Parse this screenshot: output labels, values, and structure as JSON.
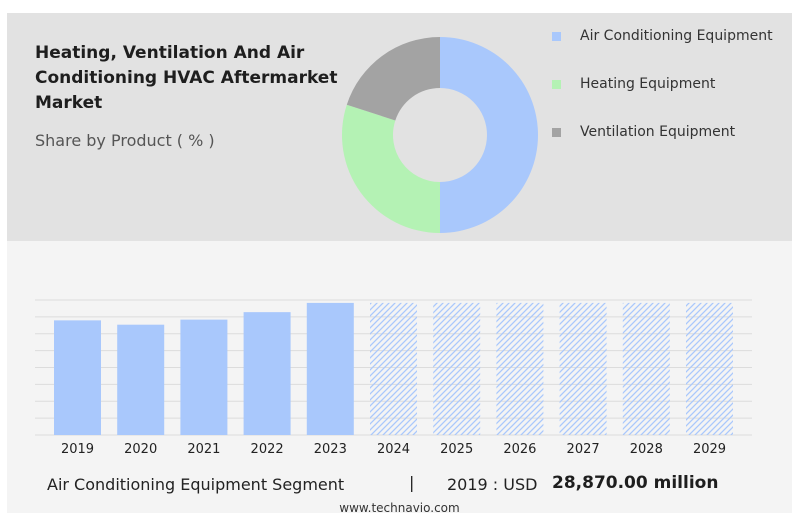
{
  "header": {
    "title": "Heating, Ventilation And Air Conditioning HVAC Aftermarket Market",
    "subtitle": "Share by Product ( % )"
  },
  "colors": {
    "air_conditioning": "#a9c8fc",
    "heating": "#b4f2b4",
    "ventilation": "#a3a3a3",
    "bar_solid": "#a9c8fc",
    "bar_hatch": "#a9c8fc"
  },
  "chart_data": [
    {
      "type": "pie",
      "title": "",
      "donut": true,
      "legend_position": "right",
      "slices": [
        {
          "name": "Air Conditioning Equipment",
          "value": 50
        },
        {
          "name": "Heating Equipment",
          "value": 30
        },
        {
          "name": "Ventilation Equipment",
          "value": 20
        }
      ]
    },
    {
      "type": "bar",
      "title": "",
      "xlabel": "",
      "ylabel": "",
      "grid": true,
      "categories": [
        "2019",
        "2020",
        "2021",
        "2022",
        "2023",
        "2024",
        "2025",
        "2026",
        "2027",
        "2028",
        "2029"
      ],
      "values": [
        28870,
        27780,
        29060,
        30940,
        33270,
        null,
        null,
        null,
        null,
        null,
        null
      ],
      "forecast_categories": [
        "2024",
        "2025",
        "2026",
        "2027",
        "2028",
        "2029"
      ],
      "ylim": [
        0,
        34000
      ]
    }
  ],
  "footer": {
    "segment_label": "Air Conditioning Equipment Segment",
    "divider": "|",
    "year_unit": "2019 : USD",
    "value": "28,870.00 million",
    "url": "www.technavio.com"
  }
}
